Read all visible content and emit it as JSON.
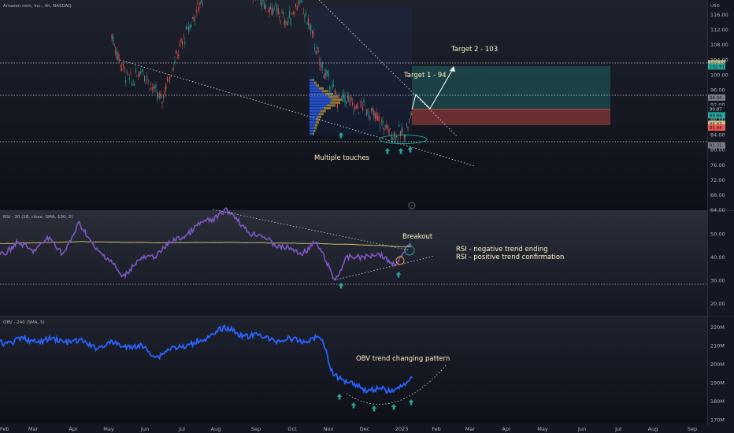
{
  "header": {
    "symbol_line": "Amazon.com, Inc., 4h, NASDAQ",
    "currency": "USD",
    "rsi_label": "RSI - 30 (28, close, SMA, 100, 2)",
    "obv_label": "OBV - 240 (SMA, 5)"
  },
  "chart_data": [
    {
      "type": "line",
      "title": "Amazon.com, Inc., 4h, NASDAQ",
      "panel": "price",
      "y_axis_ticks": [
        116.0,
        112.0,
        108.0,
        104.0,
        100.0,
        96.0,
        92.0,
        88.0,
        84.0,
        80.0,
        76.0,
        72.0,
        68.0,
        64.0
      ],
      "ylim": [
        64,
        120
      ],
      "price_tags": [
        {
          "label": "103.14",
          "value": 103.14,
          "color": "#c8c08a"
        },
        {
          "label": "102.91",
          "value": 102.3,
          "color": "#26a69a"
        },
        {
          "label": "94.00",
          "value": 94.0,
          "color": "#787b86"
        },
        {
          "label": "90.87",
          "value": 91.0,
          "color": "#131722"
        },
        {
          "label": "89.86",
          "value": 89.3,
          "color": "#26a69a"
        },
        {
          "label": "86.03",
          "value": 87.0,
          "color": "#c8c08a"
        },
        {
          "label": "85.98",
          "value": 86.0,
          "color": "#ef5350"
        },
        {
          "label": "81.31",
          "value": 81.3,
          "color": "#787b86"
        }
      ],
      "annotations": [
        "Target 2 - 103",
        "Target 1 - 94",
        "Multiple touches"
      ],
      "levels": [
        103.14,
        94.0,
        81.31
      ],
      "grid": false,
      "legend": "none"
    },
    {
      "type": "line",
      "title": "RSI - 30 (28, close, SMA, 100, 2)",
      "panel": "rsi",
      "y_axis_ticks": [
        50.0,
        40.0,
        30.0,
        20.0
      ],
      "ylim": [
        15,
        60
      ],
      "levels": [
        30
      ],
      "annotations": [
        "Breakout",
        "RSI - negative trend ending",
        "RSI - positive trend confirmation"
      ]
    },
    {
      "type": "line",
      "title": "OBV - 240 (SMA, 5)",
      "panel": "obv",
      "y_axis_ticks": [
        "220M",
        "210M",
        "200M",
        "190M",
        "180M",
        "170M"
      ],
      "ylim": [
        168,
        226
      ],
      "annotations": [
        "OBV trend changing pattern"
      ]
    }
  ],
  "time_axis": {
    "labels": [
      "Feb",
      "Mar",
      "Apr",
      "May",
      "Jun",
      "Jul",
      "Aug",
      "Sep",
      "Oct",
      "Nov",
      "Dec",
      "2023",
      "Feb",
      "Mar",
      "Apr",
      "May",
      "Jun",
      "Jul",
      "Aug",
      "Sep"
    ]
  },
  "colors": {
    "background": "#131722",
    "rsi_line": "#7e57c2",
    "rsi_ma": "#c8b86a",
    "obv_line": "#2962ff",
    "green": "#26a69a",
    "red": "#ef5350",
    "annotation": "#fff3c4",
    "arrow": "#26a69a"
  }
}
